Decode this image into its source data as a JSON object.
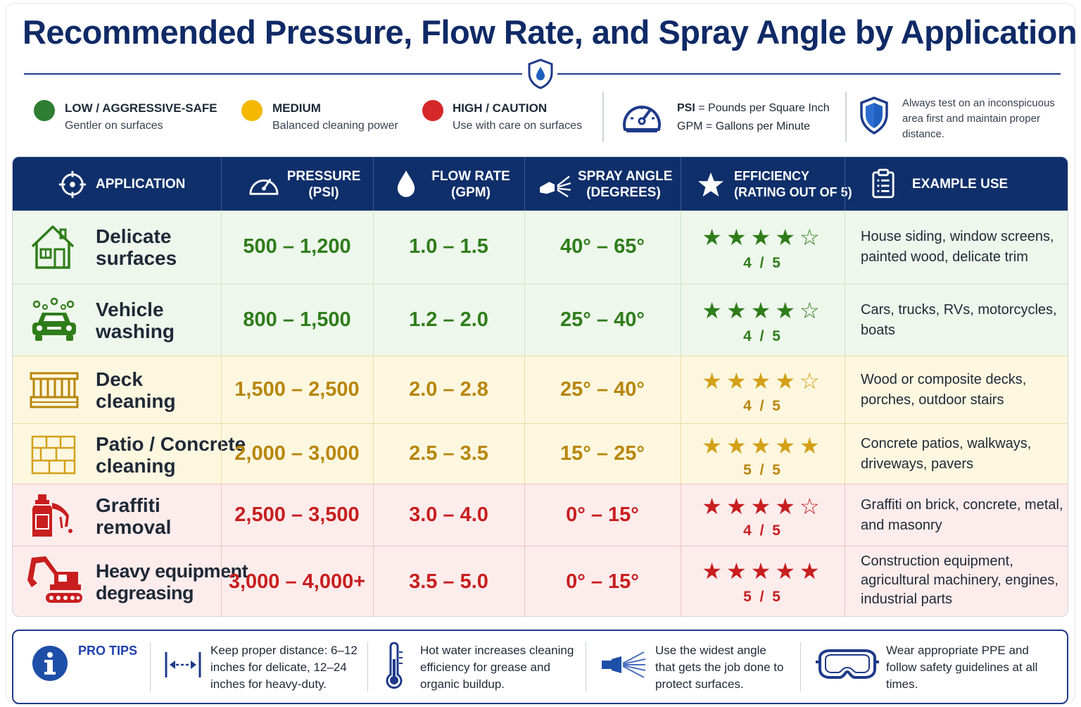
{
  "title": "Recommended Pressure, Flow Rate, and Spray Angle by Application",
  "legend": {
    "low": {
      "title": "LOW / AGGRESSIVE-SAFE",
      "desc": "Gentler on surfaces",
      "color": "#2e7d32"
    },
    "medium": {
      "title": "MEDIUM",
      "desc": "Balanced cleaning power",
      "color": "#f5b800"
    },
    "high": {
      "title": "HIGH / CAUTION",
      "desc": "Use with care on surfaces",
      "color": "#d62828"
    },
    "psi_abbr": "PSI",
    "psi_def": "= Pounds per Square Inch",
    "gpm_abbr": "GPM",
    "gpm_def": "= Gallons per Minute",
    "note": "Always test on an inconspicuous area first and maintain proper distance."
  },
  "headers": {
    "application": "APPLICATION",
    "pressure": "PRESSURE\n(PSI)",
    "flow": "FLOW RATE\n(GPM)",
    "angle": "SPRAY ANGLE\n(DEGREES)",
    "efficiency": "EFFICIENCY\n(RATING OUT OF 5)",
    "example": "EXAMPLE USE"
  },
  "rows": [
    {
      "icon": "house-icon",
      "name": "Delicate\nsurfaces",
      "pressure": "500 – 1,200",
      "flow": "1.0 – 1.5",
      "angle": "40° – 65°",
      "stars": "★★★★☆",
      "rating": "4 / 5",
      "rating_value": 4,
      "example": "House siding, window screens, painted wood, delicate trim",
      "level": "low"
    },
    {
      "icon": "car-wash-icon",
      "name": "Vehicle\nwashing",
      "pressure": "800 – 1,500",
      "flow": "1.2 – 2.0",
      "angle": "25° – 40°",
      "stars": "★★★★☆",
      "rating": "4 / 5",
      "rating_value": 4,
      "example": "Cars, trucks, RVs, motorcycles, boats",
      "level": "low"
    },
    {
      "icon": "deck-icon",
      "name": "Deck\ncleaning",
      "pressure": "1,500 – 2,500",
      "flow": "2.0 – 2.8",
      "angle": "25° – 40°",
      "stars": "★★★★☆",
      "rating": "4 / 5",
      "rating_value": 4,
      "example": "Wood or composite decks, porches, outdoor stairs",
      "level": "medium"
    },
    {
      "icon": "pavers-icon",
      "name": "Patio / Concrete\ncleaning",
      "pressure": "2,000 – 3,000",
      "flow": "2.5 – 3.5",
      "angle": "15° – 25°",
      "stars": "★★★★★",
      "rating": "5 / 5",
      "rating_value": 5,
      "example": "Concrete patios, walkways, driveways, pavers",
      "level": "medium"
    },
    {
      "icon": "spray-can-icon",
      "name": "Graffiti\nremoval",
      "pressure": "2,500 – 3,500",
      "flow": "3.0 – 4.0",
      "angle": "0° – 15°",
      "stars": "★★★★☆",
      "rating": "4 / 5",
      "rating_value": 4,
      "example": "Graffiti on brick, concrete, metal, and masonry",
      "level": "high"
    },
    {
      "icon": "excavator-icon",
      "name": "Heavy equipment\ndegreasing",
      "pressure": "3,000 – 4,000+",
      "flow": "3.5 – 5.0",
      "angle": "0° – 15°",
      "stars": "★★★★★",
      "rating": "5 / 5",
      "rating_value": 5,
      "example": "Construction equipment, agricultural machinery, engines, industrial parts",
      "level": "high"
    }
  ],
  "levels": {
    "low": {
      "bg": "#eef7ec",
      "text": "#2e7d1a",
      "border": "#cfe3c6"
    },
    "medium": {
      "bg": "#fdf7e0",
      "text": "#b8860b",
      "border": "#ecdca5"
    },
    "high": {
      "bg": "#fdecec",
      "text": "#c81e1e",
      "border": "#efc4c4"
    }
  },
  "tips": {
    "heading": "PRO TIPS",
    "items": [
      {
        "icon": "distance-arrows-icon",
        "text": "Keep proper distance: 6–12 inches for delicate, 12–24 inches for heavy-duty."
      },
      {
        "icon": "thermometer-icon",
        "text": "Hot water increases cleaning efficiency for grease and organic buildup."
      },
      {
        "icon": "spray-nozzle-icon",
        "text": "Use the widest angle that gets the job done to protect surfaces."
      },
      {
        "icon": "safety-goggles-icon",
        "text": "Wear appropriate PPE and follow safety guidelines at all times."
      }
    ]
  }
}
